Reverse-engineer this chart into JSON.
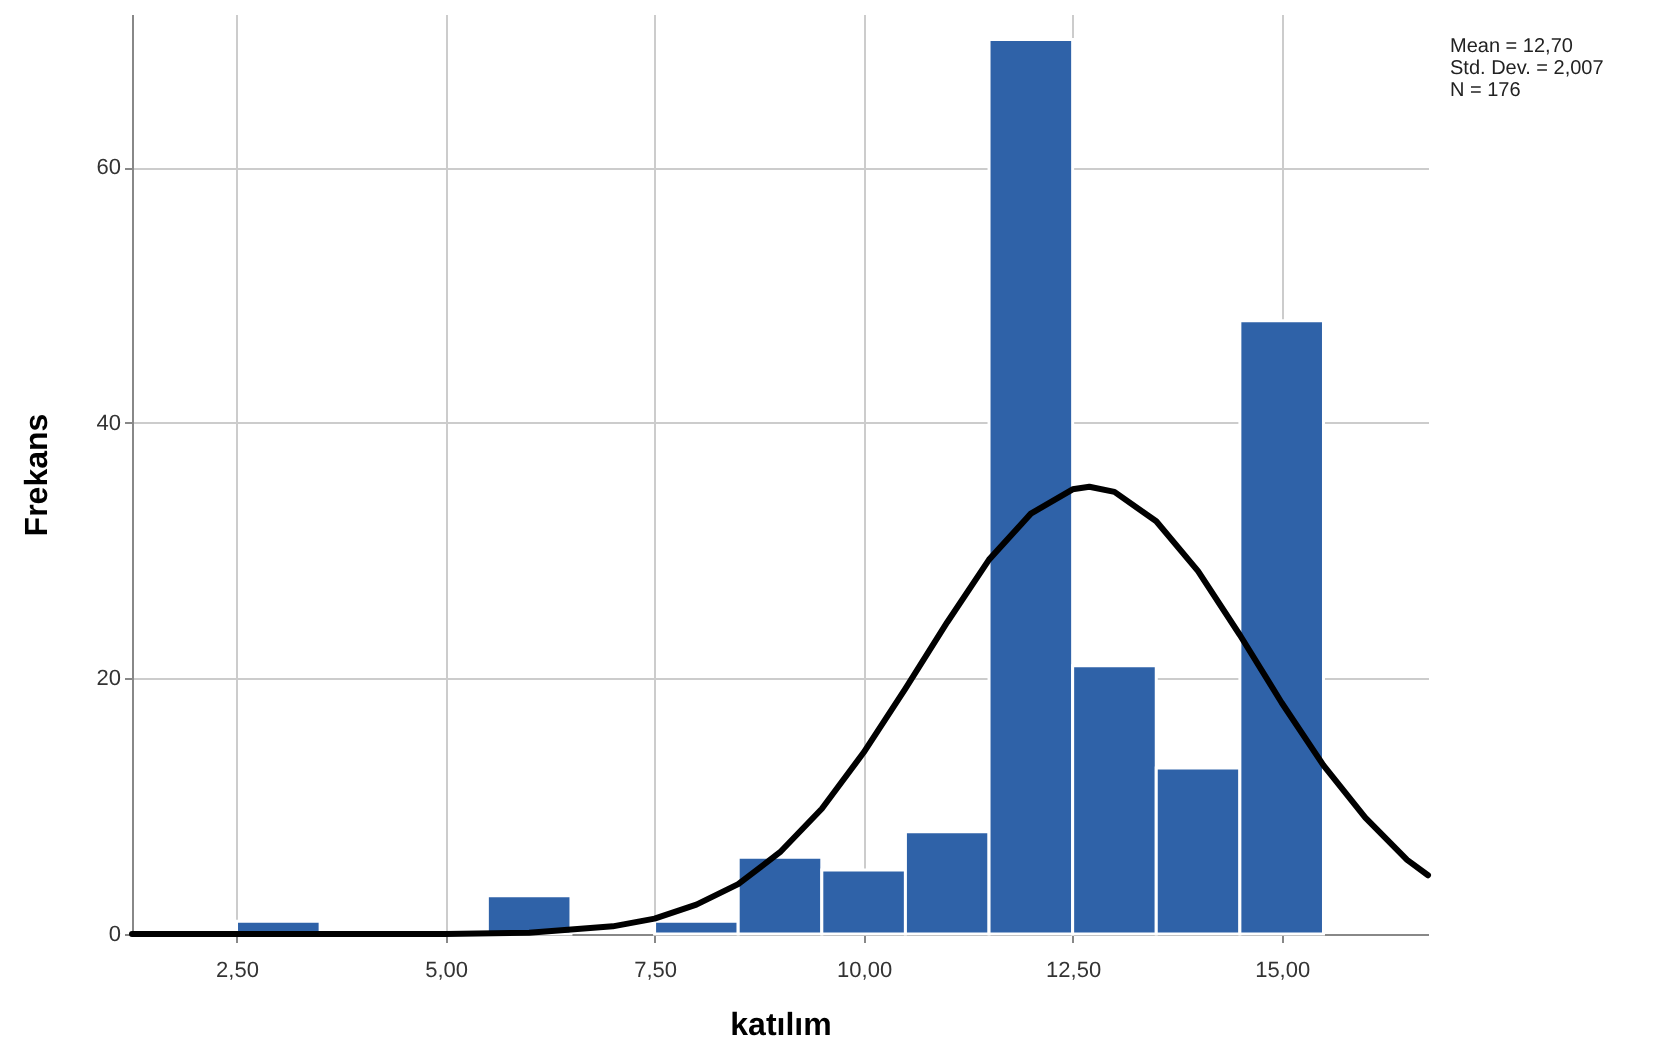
{
  "chart_data": {
    "type": "histogram",
    "xlabel": "katılım",
    "ylabel": "Frekans",
    "bins": [
      2.5,
      3.5,
      4.5,
      5.5,
      6.5,
      7.5,
      8.5,
      9.5,
      10.5,
      11.5,
      12.5,
      13.5,
      14.5,
      15.5
    ],
    "values": [
      1,
      0,
      0,
      3,
      0,
      1,
      6,
      5,
      8,
      70,
      21,
      13,
      48
    ],
    "color": "#2f62a8",
    "series": [
      {
        "type": "line",
        "color": "#000000",
        "x": [
          1.25,
          2.5,
          4,
          5,
          6,
          7,
          7.5,
          8,
          8.5,
          9,
          9.5,
          10,
          10.5,
          11,
          11.5,
          12,
          12.5,
          12.7,
          13,
          13.5,
          14,
          14.5,
          15,
          15.5,
          16,
          16.5,
          16.75
        ],
        "values": [
          0,
          0,
          0,
          0,
          0.1,
          0.6,
          1.2,
          2.3,
          3.9,
          6.4,
          9.8,
          14.2,
          19.2,
          24.4,
          29.3,
          32.9,
          34.8,
          35,
          34.6,
          32.3,
          28.4,
          23.4,
          18.1,
          13.2,
          9.1,
          5.8,
          4.6
        ]
      }
    ],
    "xlim": [
      1.25,
      16.75
    ],
    "xticks": [
      {
        "value": 2.5,
        "label": "2,50"
      },
      {
        "value": 5,
        "label": "5,00"
      },
      {
        "value": 7.5,
        "label": "7,50"
      },
      {
        "value": 10,
        "label": "10,00"
      },
      {
        "value": 12.5,
        "label": "12,50"
      },
      {
        "value": 15,
        "label": "15,00"
      }
    ],
    "ylim": [
      0,
      72
    ],
    "yticks": [
      0,
      20,
      40,
      60
    ],
    "grid": true,
    "marker": "none",
    "line_style": "solid",
    "annotations": [
      "Mean = 12,70",
      "Std. Dev. = 2,007",
      "N = 176"
    ]
  }
}
